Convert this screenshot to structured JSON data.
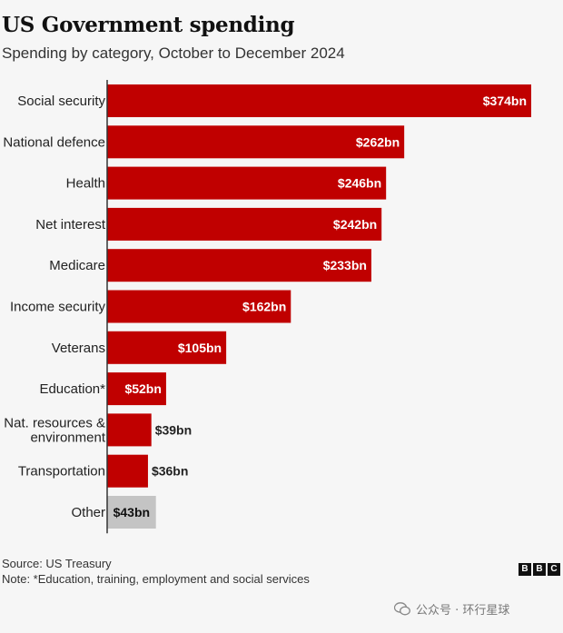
{
  "header": {
    "title": "US Government spending",
    "subtitle": "Spending by category, October to December 2024"
  },
  "chart_data": {
    "type": "bar",
    "orientation": "horizontal",
    "title": "US Government spending",
    "subtitle": "Spending by category, October to December 2024",
    "xlabel": "",
    "ylabel": "",
    "unit": "$bn",
    "categories": [
      [
        "Social security"
      ],
      [
        "National defence"
      ],
      [
        "Health"
      ],
      [
        "Net interest"
      ],
      [
        "Medicare"
      ],
      [
        "Income security"
      ],
      [
        "Veterans"
      ],
      [
        "Education*"
      ],
      [
        "Nat. resources &",
        "environment"
      ],
      [
        "Transportation"
      ],
      [
        "Other"
      ]
    ],
    "values": [
      374,
      262,
      246,
      242,
      233,
      162,
      105,
      52,
      39,
      36,
      43
    ],
    "value_labels": [
      "$374bn",
      "$262bn",
      "$246bn",
      "$242bn",
      "$233bn",
      "$162bn",
      "$105bn",
      "$52bn",
      "$39bn",
      "$36bn",
      "$43bn"
    ],
    "xlim": [
      0,
      374
    ],
    "grid": false,
    "colors": {
      "main": "#c00000",
      "other": "#c4c4c4"
    }
  },
  "footer": {
    "source": "Source: US Treasury",
    "note": "Note: *Education, training, employment and social services"
  },
  "branding": {
    "bbc_letters": [
      "B",
      "B",
      "C"
    ],
    "watermark": "公众号 · 环行星球"
  }
}
